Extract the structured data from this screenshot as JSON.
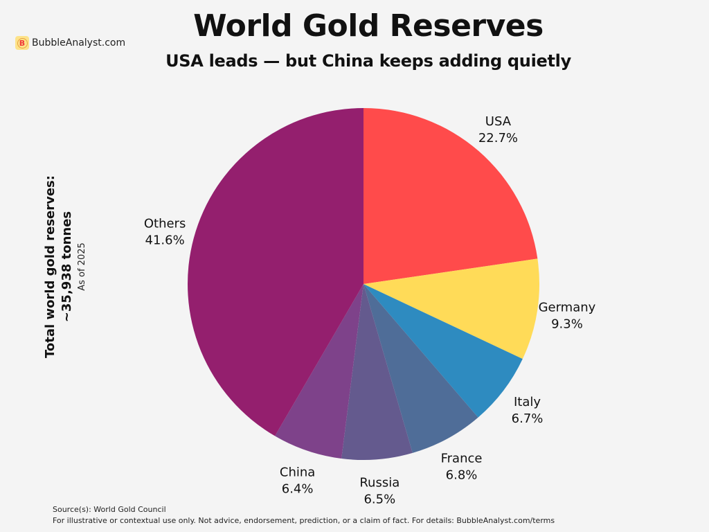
{
  "brand": {
    "logo_letter": "B",
    "name": "BubbleAnalyst.com",
    "watermark": "BubbleAnalyst.com"
  },
  "header": {
    "title": "World Gold Reserves",
    "subtitle": "USA leads — but China keeps adding quietly"
  },
  "side_note": {
    "line1": "Total world gold reserves:",
    "line2": "~35,938 tonnes",
    "line3": "As of 2025"
  },
  "footer": {
    "source": "Source(s): World Gold Council",
    "disclaimer": "For illustrative or contextual use only. Not advice, endorsement, prediction, or a claim of fact. For details: BubbleAnalyst.com/terms"
  },
  "chart_data": {
    "type": "pie",
    "title": "World Gold Reserves",
    "start_angle": "top",
    "direction": "clockwise",
    "slices": [
      {
        "label": "USA",
        "value": 22.7,
        "display": "22.7%",
        "color": "#FF4B4B"
      },
      {
        "label": "Germany",
        "value": 9.3,
        "display": "9.3%",
        "color": "#FFDB58"
      },
      {
        "label": "Italy",
        "value": 6.7,
        "display": "6.7%",
        "color": "#2E8BC0"
      },
      {
        "label": "France",
        "value": 6.8,
        "display": "6.8%",
        "color": "#4F6D98"
      },
      {
        "label": "Russia",
        "value": 6.5,
        "display": "6.5%",
        "color": "#645A8E"
      },
      {
        "label": "China",
        "value": 6.4,
        "display": "6.4%",
        "color": "#7E428A"
      },
      {
        "label": "Others",
        "value": 41.6,
        "display": "41.6%",
        "color": "#941F6E"
      }
    ]
  }
}
